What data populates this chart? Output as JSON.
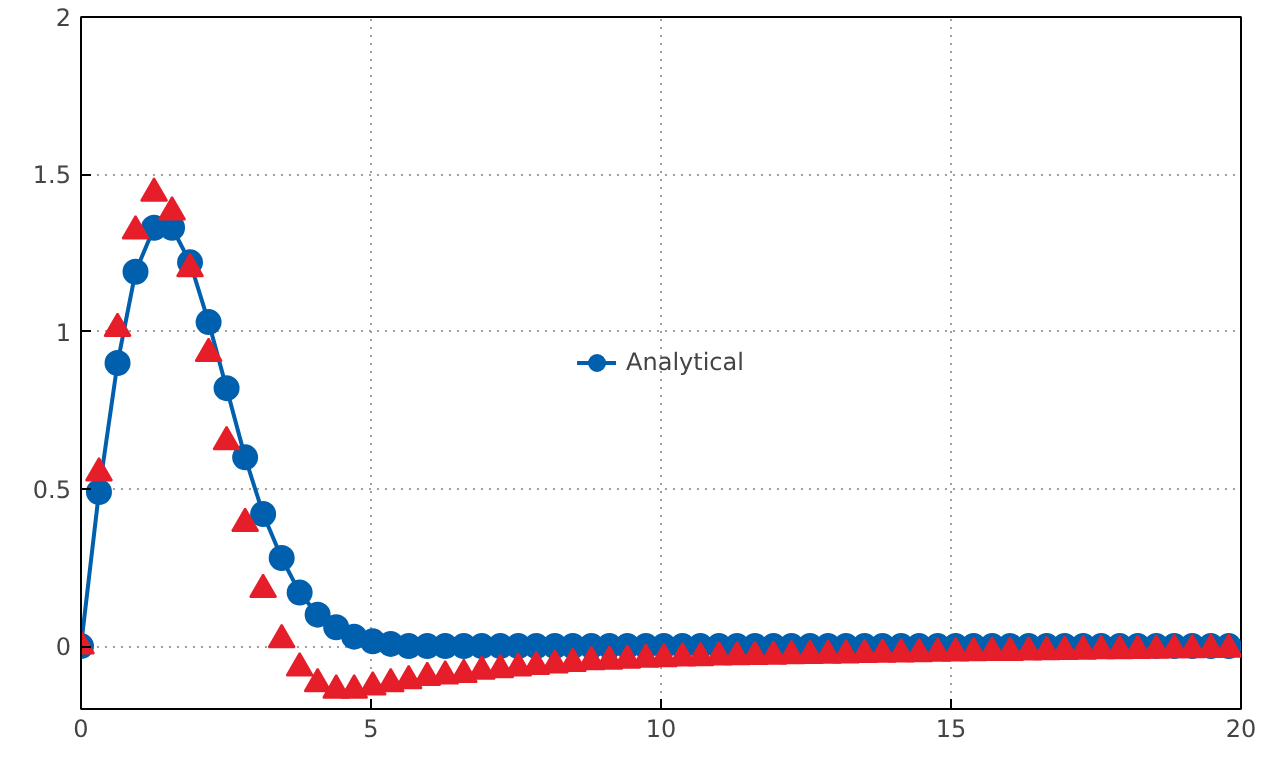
{
  "chart_data": {
    "type": "line",
    "x": [
      0,
      0.31,
      0.63,
      0.94,
      1.26,
      1.57,
      1.88,
      2.2,
      2.51,
      2.83,
      3.14,
      3.46,
      3.77,
      4.08,
      4.4,
      4.71,
      5.03,
      5.34,
      5.65,
      5.97,
      6.28,
      6.6,
      6.91,
      7.23,
      7.54,
      7.85,
      8.17,
      8.48,
      8.8,
      9.11,
      9.42,
      9.74,
      10.05,
      10.37,
      10.68,
      11.0,
      11.31,
      11.62,
      11.94,
      12.25,
      12.57,
      12.88,
      13.19,
      13.51,
      13.82,
      14.14,
      14.45,
      14.77,
      15.08,
      15.39,
      15.71,
      16.02,
      16.34,
      16.65,
      16.96,
      17.28,
      17.59,
      17.91,
      18.22,
      18.54,
      18.85,
      19.16,
      19.48,
      19.79
    ],
    "series": [
      {
        "name": "Analytical",
        "marker": "circle",
        "color": "#0060ad",
        "values": [
          0,
          0.49,
          0.9,
          1.19,
          1.33,
          1.33,
          1.22,
          1.03,
          0.82,
          0.6,
          0.42,
          0.28,
          0.17,
          0.1,
          0.06,
          0.03,
          0.015,
          0.007,
          0,
          0,
          0,
          0,
          0,
          0,
          0,
          0,
          0,
          0,
          0,
          0,
          0,
          0,
          0,
          0,
          0,
          0,
          0,
          0,
          0,
          0,
          0,
          0,
          0,
          0,
          0,
          0,
          0,
          0,
          0,
          0,
          0,
          0,
          0,
          0,
          0,
          0,
          0,
          0,
          0,
          0,
          0,
          0,
          0,
          0
        ]
      },
      {
        "type": "scatter",
        "marker": "triangle",
        "color": "#e51e2a",
        "values": [
          0,
          0.55,
          1.01,
          1.32,
          1.44,
          1.38,
          1.2,
          0.93,
          0.65,
          0.39,
          0.18,
          0.02,
          -0.07,
          -0.12,
          -0.14,
          -0.14,
          -0.13,
          -0.12,
          -0.11,
          -0.1,
          -0.095,
          -0.09,
          -0.08,
          -0.075,
          -0.07,
          -0.065,
          -0.06,
          -0.055,
          -0.05,
          -0.048,
          -0.045,
          -0.042,
          -0.04,
          -0.038,
          -0.037,
          -0.035,
          -0.034,
          -0.033,
          -0.032,
          -0.031,
          -0.03,
          -0.029,
          -0.028,
          -0.027,
          -0.026,
          -0.025,
          -0.024,
          -0.023,
          -0.022,
          -0.021,
          -0.02,
          -0.02,
          -0.019,
          -0.018,
          -0.017,
          -0.016,
          -0.015,
          -0.015,
          -0.014,
          -0.013,
          -0.012,
          -0.012,
          -0.011,
          -0.01
        ]
      }
    ],
    "xlim": [
      0,
      20
    ],
    "ylim": [
      -0.2,
      2
    ],
    "xticks": [
      0,
      5,
      10,
      15,
      20
    ],
    "yticks": [
      0,
      0.5,
      1,
      1.5,
      2
    ],
    "grid": true,
    "legend": "center"
  }
}
